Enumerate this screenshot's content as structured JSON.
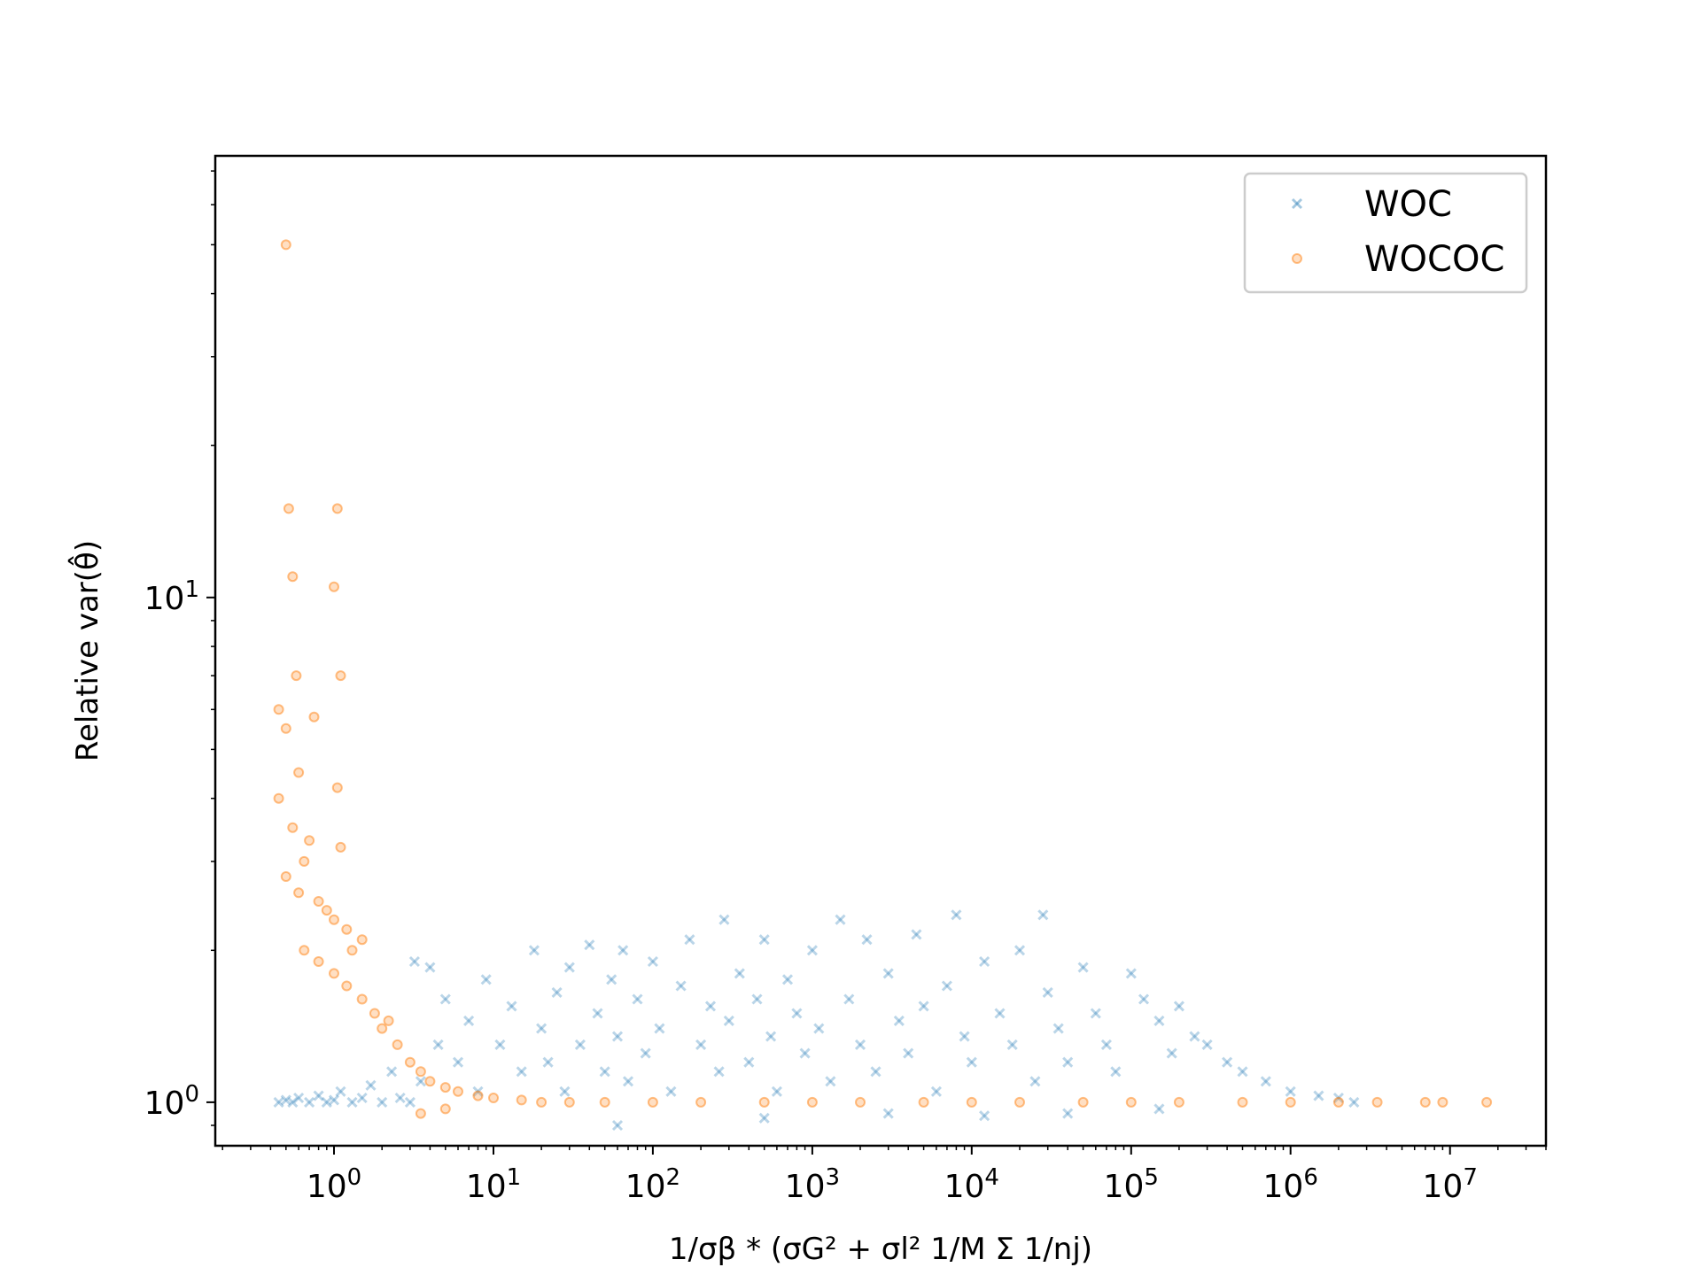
{
  "chart_data": {
    "type": "scatter",
    "title": "",
    "xlabel": "1/σβ * (σG² + σl² 1/M Σ 1/nj)",
    "ylabel": "Relative var(θ̂)",
    "x_scale": "log",
    "y_scale": "log",
    "xlim": [
      0.18,
      40000000
    ],
    "ylim": [
      0.82,
      75
    ],
    "x_ticks": [
      {
        "value": 1,
        "label": "10",
        "exp": "0"
      },
      {
        "value": 10,
        "label": "10",
        "exp": "1"
      },
      {
        "value": 100,
        "label": "10",
        "exp": "2"
      },
      {
        "value": 1000,
        "label": "10",
        "exp": "3"
      },
      {
        "value": 10000,
        "label": "10",
        "exp": "4"
      },
      {
        "value": 100000,
        "label": "10",
        "exp": "5"
      },
      {
        "value": 1000000,
        "label": "10",
        "exp": "6"
      },
      {
        "value": 10000000,
        "label": "10",
        "exp": "7"
      }
    ],
    "y_ticks": [
      {
        "value": 1,
        "label": "10",
        "exp": "0"
      },
      {
        "value": 10,
        "label": "10",
        "exp": "1"
      }
    ],
    "grid": false,
    "legend_position": "top-right",
    "series": [
      {
        "name": "WOC",
        "color": "#1f77b4",
        "marker": "x",
        "points": [
          [
            0.45,
            1.0
          ],
          [
            0.5,
            1.01
          ],
          [
            0.55,
            1.0
          ],
          [
            0.6,
            1.02
          ],
          [
            0.7,
            1.0
          ],
          [
            0.8,
            1.03
          ],
          [
            0.9,
            1.0
          ],
          [
            1.0,
            1.01
          ],
          [
            1.1,
            1.05
          ],
          [
            1.3,
            1.0
          ],
          [
            1.5,
            1.02
          ],
          [
            1.7,
            1.08
          ],
          [
            2.0,
            1.0
          ],
          [
            2.3,
            1.15
          ],
          [
            2.6,
            1.02
          ],
          [
            3.0,
            1.0
          ],
          [
            3.2,
            1.9
          ],
          [
            3.5,
            1.1
          ],
          [
            4.0,
            1.85
          ],
          [
            4.5,
            1.3
          ],
          [
            5.0,
            1.6
          ],
          [
            6.0,
            1.2
          ],
          [
            7.0,
            1.45
          ],
          [
            8.0,
            1.05
          ],
          [
            9.0,
            1.75
          ],
          [
            11,
            1.3
          ],
          [
            13,
            1.55
          ],
          [
            15,
            1.15
          ],
          [
            18,
            2.0
          ],
          [
            20,
            1.4
          ],
          [
            22,
            1.2
          ],
          [
            25,
            1.65
          ],
          [
            28,
            1.05
          ],
          [
            30,
            1.85
          ],
          [
            35,
            1.3
          ],
          [
            40,
            2.05
          ],
          [
            45,
            1.5
          ],
          [
            50,
            1.15
          ],
          [
            55,
            1.75
          ],
          [
            60,
            1.35
          ],
          [
            65,
            2.0
          ],
          [
            70,
            1.1
          ],
          [
            80,
            1.6
          ],
          [
            90,
            1.25
          ],
          [
            100,
            1.9
          ],
          [
            110,
            1.4
          ],
          [
            130,
            1.05
          ],
          [
            150,
            1.7
          ],
          [
            170,
            2.1
          ],
          [
            200,
            1.3
          ],
          [
            230,
            1.55
          ],
          [
            260,
            1.15
          ],
          [
            280,
            2.3
          ],
          [
            300,
            1.45
          ],
          [
            350,
            1.8
          ],
          [
            400,
            1.2
          ],
          [
            450,
            1.6
          ],
          [
            500,
            2.1
          ],
          [
            550,
            1.35
          ],
          [
            600,
            1.05
          ],
          [
            700,
            1.75
          ],
          [
            800,
            1.5
          ],
          [
            900,
            1.25
          ],
          [
            1000,
            2.0
          ],
          [
            1100,
            1.4
          ],
          [
            1300,
            1.1
          ],
          [
            1500,
            2.3
          ],
          [
            1700,
            1.6
          ],
          [
            2000,
            1.3
          ],
          [
            2200,
            2.1
          ],
          [
            2500,
            1.15
          ],
          [
            3000,
            1.8
          ],
          [
            3500,
            1.45
          ],
          [
            4000,
            1.25
          ],
          [
            4500,
            2.15
          ],
          [
            5000,
            1.55
          ],
          [
            6000,
            1.05
          ],
          [
            7000,
            1.7
          ],
          [
            8000,
            2.35
          ],
          [
            9000,
            1.35
          ],
          [
            10000,
            1.2
          ],
          [
            12000,
            1.9
          ],
          [
            15000,
            1.5
          ],
          [
            18000,
            1.3
          ],
          [
            20000,
            2.0
          ],
          [
            25000,
            1.1
          ],
          [
            28000,
            2.35
          ],
          [
            30000,
            1.65
          ],
          [
            35000,
            1.4
          ],
          [
            40000,
            1.2
          ],
          [
            50000,
            1.85
          ],
          [
            60000,
            1.5
          ],
          [
            70000,
            1.3
          ],
          [
            80000,
            1.15
          ],
          [
            100000,
            1.8
          ],
          [
            120000,
            1.6
          ],
          [
            150000,
            1.45
          ],
          [
            180000,
            1.25
          ],
          [
            200000,
            1.55
          ],
          [
            250000,
            1.35
          ],
          [
            300000,
            1.3
          ],
          [
            400000,
            1.2
          ],
          [
            500000,
            1.15
          ],
          [
            700000,
            1.1
          ],
          [
            1000000,
            1.05
          ],
          [
            1500000,
            1.03
          ],
          [
            2000000,
            1.02
          ],
          [
            2500000,
            1.0
          ],
          [
            3000,
            0.95
          ],
          [
            500,
            0.93
          ],
          [
            60,
            0.9
          ],
          [
            40000,
            0.95
          ],
          [
            150000,
            0.97
          ],
          [
            12000,
            0.94
          ]
        ]
      },
      {
        "name": "WOCOC",
        "color": "#ff7f0e",
        "marker": "o",
        "points": [
          [
            0.5,
            50.0
          ],
          [
            0.52,
            15.0
          ],
          [
            1.05,
            15.0
          ],
          [
            0.55,
            11.0
          ],
          [
            1.0,
            10.5
          ],
          [
            0.58,
            7.0
          ],
          [
            1.1,
            7.0
          ],
          [
            0.45,
            6.0
          ],
          [
            0.5,
            5.5
          ],
          [
            0.75,
            5.8
          ],
          [
            0.6,
            4.5
          ],
          [
            1.05,
            4.2
          ],
          [
            0.45,
            4.0
          ],
          [
            0.55,
            3.5
          ],
          [
            0.7,
            3.3
          ],
          [
            0.65,
            3.0
          ],
          [
            1.1,
            3.2
          ],
          [
            0.5,
            2.8
          ],
          [
            0.6,
            2.6
          ],
          [
            0.8,
            2.5
          ],
          [
            0.9,
            2.4
          ],
          [
            1.0,
            2.3
          ],
          [
            1.2,
            2.2
          ],
          [
            1.3,
            2.0
          ],
          [
            1.5,
            2.1
          ],
          [
            0.65,
            2.0
          ],
          [
            0.8,
            1.9
          ],
          [
            1.0,
            1.8
          ],
          [
            1.2,
            1.7
          ],
          [
            1.5,
            1.6
          ],
          [
            1.8,
            1.5
          ],
          [
            2.0,
            1.4
          ],
          [
            2.2,
            1.45
          ],
          [
            2.5,
            1.3
          ],
          [
            3.0,
            1.2
          ],
          [
            3.5,
            1.15
          ],
          [
            4.0,
            1.1
          ],
          [
            5.0,
            1.07
          ],
          [
            6.0,
            1.05
          ],
          [
            8.0,
            1.03
          ],
          [
            10,
            1.02
          ],
          [
            15,
            1.01
          ],
          [
            20,
            1.0
          ],
          [
            30,
            1.0
          ],
          [
            50,
            1.0
          ],
          [
            100,
            1.0
          ],
          [
            200,
            1.0
          ],
          [
            500,
            1.0
          ],
          [
            1000,
            1.0
          ],
          [
            2000,
            1.0
          ],
          [
            5000,
            1.0
          ],
          [
            10000,
            1.0
          ],
          [
            20000,
            1.0
          ],
          [
            50000,
            1.0
          ],
          [
            100000,
            1.0
          ],
          [
            200000,
            1.0
          ],
          [
            500000,
            1.0
          ],
          [
            1000000,
            1.0
          ],
          [
            2000000,
            1.0
          ],
          [
            3500000,
            1.0
          ],
          [
            7000000,
            1.0
          ],
          [
            9000000,
            1.0
          ],
          [
            17000000,
            1.0
          ],
          [
            3.5,
            0.95
          ],
          [
            5.0,
            0.97
          ]
        ]
      }
    ]
  }
}
